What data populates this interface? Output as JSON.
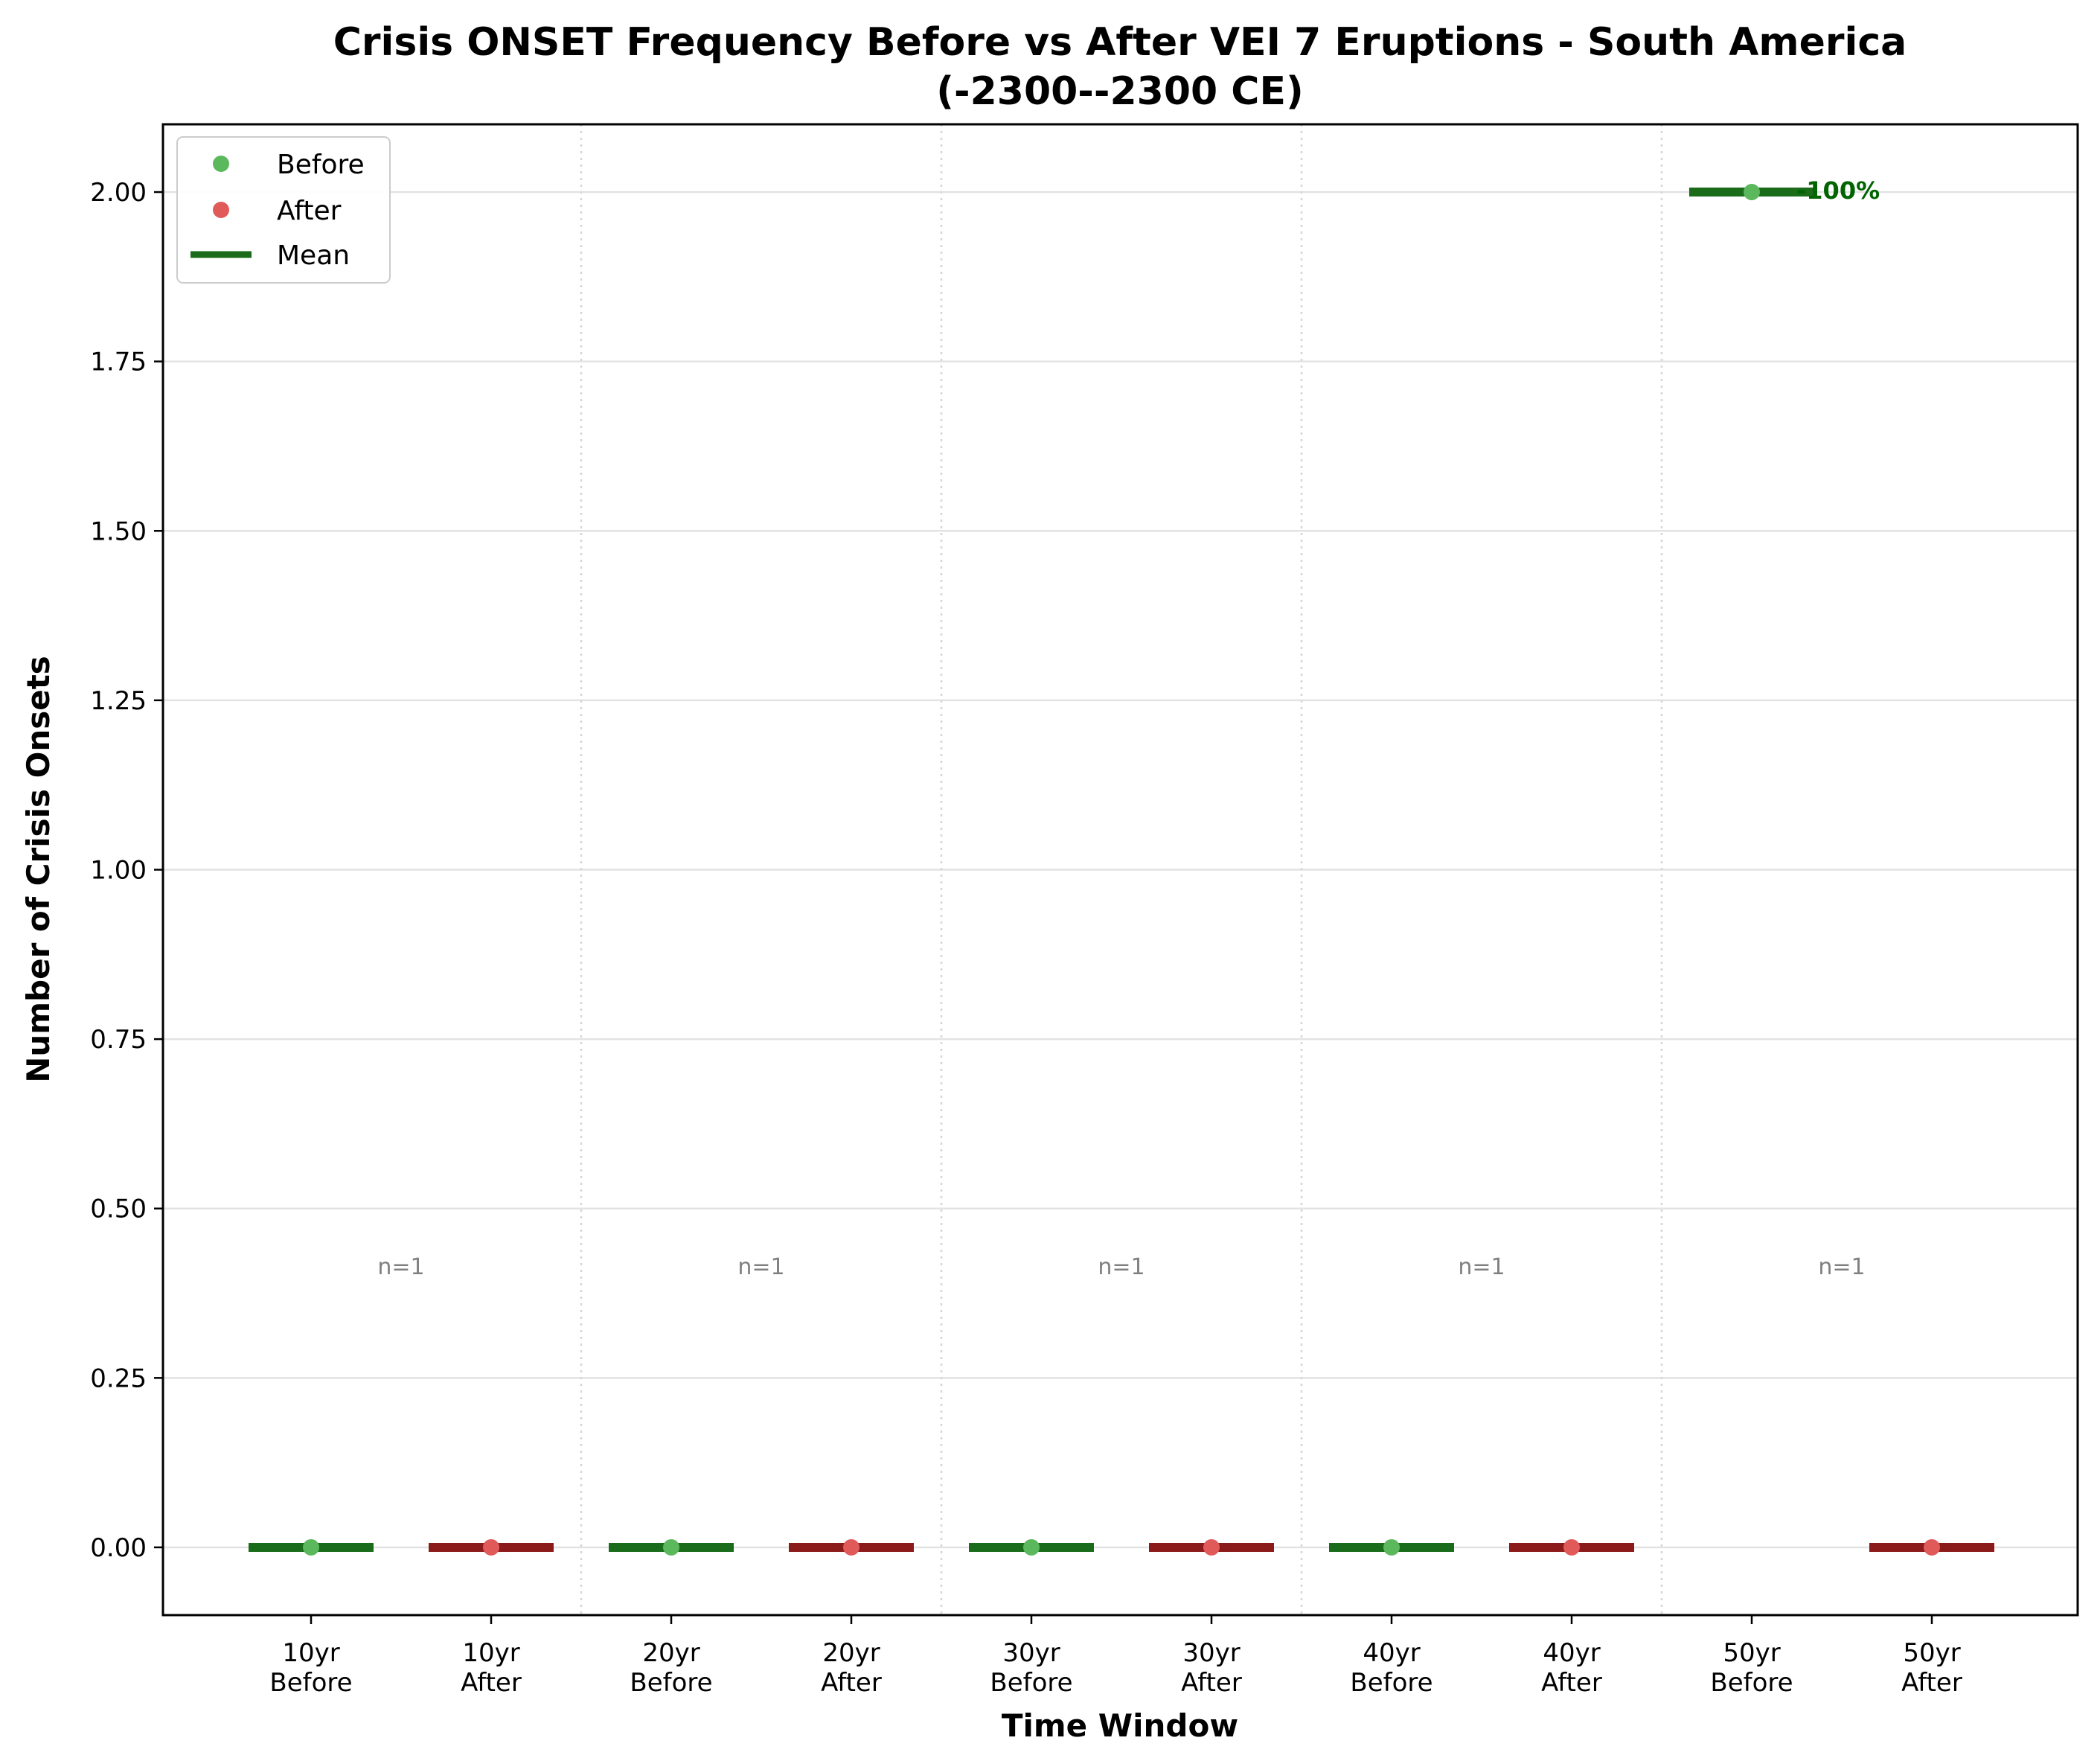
{
  "chart_data": {
    "type": "scatter",
    "title_line1": "Crisis ONSET Frequency Before vs After VEI 7 Eruptions - South America",
    "title_line2": "(-2300--2300 CE)",
    "xlabel": "Time Window",
    "ylabel": "Number of Crisis Onsets",
    "ylim": [
      -0.1,
      2.1
    ],
    "yticks": [
      "0.00",
      "0.25",
      "0.50",
      "0.75",
      "1.00",
      "1.25",
      "1.50",
      "1.75",
      "2.00"
    ],
    "ytick_values": [
      0,
      0.25,
      0.5,
      0.75,
      1.0,
      1.25,
      1.5,
      1.75,
      2.0
    ],
    "grid": "horizontal",
    "legend": {
      "placement": "top-left",
      "entries": [
        {
          "label": "Before",
          "type": "dot",
          "color": "#5cb85c"
        },
        {
          "label": "After",
          "type": "dot",
          "color": "#e05a5a"
        },
        {
          "label": "Mean",
          "type": "line",
          "color": "#1a6b1a"
        }
      ]
    },
    "colors": {
      "before_point": "#5cb85c",
      "after_point": "#e05a5a",
      "before_mean": "#1a6b1a",
      "after_mean": "#8b1a1a",
      "n_label": "#808080",
      "pct_label": "#006400"
    },
    "categories": [
      {
        "line1": "10yr",
        "line2": "Before"
      },
      {
        "line1": "10yr",
        "line2": "After"
      },
      {
        "line1": "20yr",
        "line2": "Before"
      },
      {
        "line1": "20yr",
        "line2": "After"
      },
      {
        "line1": "30yr",
        "line2": "Before"
      },
      {
        "line1": "30yr",
        "line2": "After"
      },
      {
        "line1": "40yr",
        "line2": "Before"
      },
      {
        "line1": "40yr",
        "line2": "After"
      },
      {
        "line1": "50yr",
        "line2": "Before"
      },
      {
        "line1": "50yr",
        "line2": "After"
      }
    ],
    "groups": [
      {
        "window": "10yr",
        "before": 0,
        "after": 0,
        "n_label": "n=1",
        "pct_label": ""
      },
      {
        "window": "20yr",
        "before": 0,
        "after": 0,
        "n_label": "n=1",
        "pct_label": ""
      },
      {
        "window": "30yr",
        "before": 0,
        "after": 0,
        "n_label": "n=1",
        "pct_label": ""
      },
      {
        "window": "40yr",
        "before": 0,
        "after": 0,
        "n_label": "n=1",
        "pct_label": ""
      },
      {
        "window": "50yr",
        "before": 2,
        "after": 0,
        "n_label": "n=1",
        "pct_label": "-100%"
      }
    ]
  }
}
